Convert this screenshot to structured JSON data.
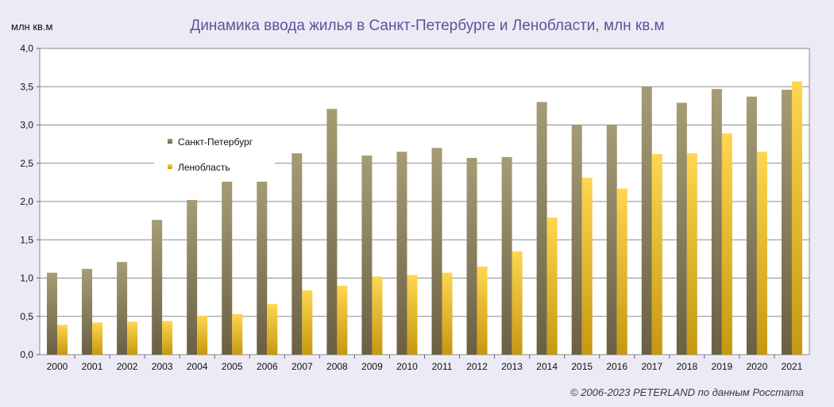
{
  "chart_data": {
    "type": "bar",
    "title": "Динамика ввода жилья в Санкт-Петербурге и Ленобласти,  млн кв.м",
    "ylabel": "млн кв.м",
    "xlabel": "",
    "ylim": [
      0,
      4.0
    ],
    "yticks": [
      "0,0",
      "0,5",
      "1,0",
      "1,5",
      "2,0",
      "2,5",
      "3,0",
      "3,5",
      "4,0"
    ],
    "categories": [
      "2000",
      "2001",
      "2002",
      "2003",
      "2004",
      "2005",
      "2006",
      "2007",
      "2008",
      "2009",
      "2010",
      "2011",
      "2012",
      "2013",
      "2014",
      "2015",
      "2016",
      "2017",
      "2018",
      "2019",
      "2020",
      "2021"
    ],
    "series": [
      {
        "name": "Санкт-Петербург",
        "color_top": "#a39a72",
        "color_bottom": "#6e6248",
        "values": [
          1.07,
          1.12,
          1.21,
          1.76,
          2.02,
          2.27,
          2.29,
          2.63,
          3.21,
          2.6,
          2.65,
          2.7,
          2.57,
          2.58,
          3.3,
          3.0,
          3.0,
          3.5,
          3.29,
          3.47,
          3.37,
          3.46
        ]
      },
      {
        "name": "Ленобласть",
        "color_top": "#ffd24a",
        "color_bottom": "#c99a10",
        "values": [
          0.39,
          0.42,
          0.43,
          0.44,
          0.51,
          0.53,
          0.66,
          0.84,
          0.9,
          1.02,
          1.04,
          1.07,
          1.15,
          1.35,
          1.79,
          2.31,
          2.17,
          2.62,
          2.63,
          2.89,
          2.65,
          3.57
        ]
      }
    ],
    "grid": true,
    "legend_position": "top-left"
  },
  "footer": {
    "copyright": "© 2006-2023 PETERLAND  по данным Росстата"
  }
}
